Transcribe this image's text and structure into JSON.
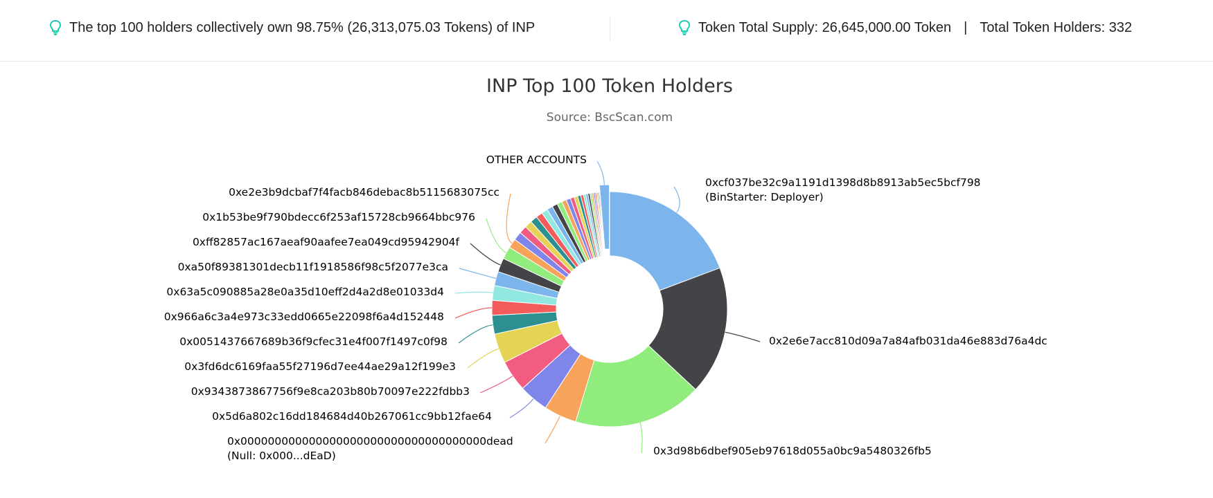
{
  "header": {
    "left_text": "The top 100 holders collectively own 98.75% (26,313,075.03 Tokens) of INP",
    "total_supply_text": "Token Total Supply: 26,645,000.00 Token",
    "separator": "|",
    "holders_text": "Total Token Holders: 332",
    "icon_color": "#00c9a7"
  },
  "chart_data": {
    "type": "pie",
    "donut": true,
    "title": "INP Top 100 Token Holders",
    "subtitle": "Source: BscScan.com",
    "unit": "percent of total supply (estimated from slice angles)",
    "slices": [
      {
        "label": "0xcf037be32c9a1191d1398d8b8913ab5ec5bcf798",
        "label2": "(BinStarter: Deployer)",
        "value": 18.0,
        "color": "#7cb5ec",
        "side": "right"
      },
      {
        "label": "0x2e6e7acc810d09a7a84afb031da46e883d76a4dc",
        "label2": "",
        "value": 16.5,
        "color": "#434348",
        "side": "right"
      },
      {
        "label": "0x3d98b6dbef905eb97618d055a0bc9a5480326fb5",
        "label2": "",
        "value": 16.5,
        "color": "#90ed7d",
        "side": "right"
      },
      {
        "label": "0x000000000000000000000000000000000000dead",
        "label2": "(Null: 0x000...dEaD)",
        "value": 4.2,
        "color": "#f7a35c",
        "side": "left"
      },
      {
        "label": "0x5d6a802c16dd184684d40b267061cc9bb12fae64",
        "label2": "",
        "value": 3.8,
        "color": "#8085e9",
        "side": "left"
      },
      {
        "label": "0x9343873867756f9e8ca203b80b70097e222fdbb3",
        "label2": "",
        "value": 4.0,
        "color": "#f15c80",
        "side": "left"
      },
      {
        "label": "0x3fd6dc6169faa55f27196d7ee44ae29a12f199e3",
        "label2": "",
        "value": 3.8,
        "color": "#e4d354",
        "side": "left"
      },
      {
        "label": "0x0051437667689b36f9cfec31e4f007f1497c0f98",
        "label2": "",
        "value": 2.4,
        "color": "#2b908f",
        "side": "left"
      },
      {
        "label": "0x966a6c3a4e973c33edd0665e22098f6a4d152448",
        "label2": "",
        "value": 1.9,
        "color": "#f45b5b",
        "side": "left"
      },
      {
        "label": "0x63a5c090885a28e0a35d10eff2d4a2d8e01033d4",
        "label2": "",
        "value": 1.9,
        "color": "#91e8e1",
        "side": "left"
      },
      {
        "label": "0xa50f89381301decb11f1918586f98c5f2077e3ca",
        "label2": "",
        "value": 1.8,
        "color": "#7cb5ec",
        "side": "left"
      },
      {
        "label": "0xff82857ac167aeaf90aafee7ea049cd95942904f",
        "label2": "",
        "value": 1.8,
        "color": "#434348",
        "side": "left"
      },
      {
        "label": "0x1b53be9f790bdecc6f253af15728cb9664bbc976",
        "label2": "",
        "value": 1.6,
        "color": "#90ed7d",
        "side": "left"
      },
      {
        "label": "0xe2e3b9dcbaf7f4facb846debac8b5115683075cc",
        "label2": "",
        "value": 1.2,
        "color": "#f7a35c",
        "side": "left"
      },
      {
        "label": "",
        "label2": "",
        "value": 1.1,
        "color": "#8085e9",
        "side": "none"
      },
      {
        "label": "",
        "label2": "",
        "value": 1.0,
        "color": "#f15c80",
        "side": "none"
      },
      {
        "label": "",
        "label2": "",
        "value": 0.95,
        "color": "#e4d354",
        "side": "none"
      },
      {
        "label": "",
        "label2": "",
        "value": 0.9,
        "color": "#2b908f",
        "side": "none"
      },
      {
        "label": "",
        "label2": "",
        "value": 0.85,
        "color": "#f45b5b",
        "side": "none"
      },
      {
        "label": "",
        "label2": "",
        "value": 0.8,
        "color": "#91e8e1",
        "side": "none"
      },
      {
        "label": "",
        "label2": "",
        "value": 0.75,
        "color": "#7cb5ec",
        "side": "none"
      },
      {
        "label": "",
        "label2": "",
        "value": 0.7,
        "color": "#434348",
        "side": "none"
      },
      {
        "label": "",
        "label2": "",
        "value": 0.65,
        "color": "#90ed7d",
        "side": "none"
      },
      {
        "label": "",
        "label2": "",
        "value": 0.6,
        "color": "#f7a35c",
        "side": "none"
      },
      {
        "label": "",
        "label2": "",
        "value": 0.55,
        "color": "#8085e9",
        "side": "none"
      },
      {
        "label": "",
        "label2": "",
        "value": 0.5,
        "color": "#f15c80",
        "side": "none"
      },
      {
        "label": "",
        "label2": "",
        "value": 0.45,
        "color": "#e4d354",
        "side": "none"
      },
      {
        "label": "",
        "label2": "",
        "value": 0.4,
        "color": "#2b908f",
        "side": "none"
      },
      {
        "label": "",
        "label2": "",
        "value": 0.35,
        "color": "#f45b5b",
        "side": "none"
      },
      {
        "label": "",
        "label2": "",
        "value": 0.3,
        "color": "#91e8e1",
        "side": "none"
      },
      {
        "label": "",
        "label2": "",
        "value": 0.28,
        "color": "#7cb5ec",
        "side": "none"
      },
      {
        "label": "",
        "label2": "",
        "value": 0.26,
        "color": "#434348",
        "side": "none"
      },
      {
        "label": "",
        "label2": "",
        "value": 0.24,
        "color": "#90ed7d",
        "side": "none"
      },
      {
        "label": "",
        "label2": "",
        "value": 0.22,
        "color": "#f7a35c",
        "side": "none"
      },
      {
        "label": "",
        "label2": "",
        "value": 0.2,
        "color": "#8085e9",
        "side": "none"
      },
      {
        "label": "",
        "label2": "",
        "value": 0.18,
        "color": "#f15c80",
        "side": "none"
      },
      {
        "label": "",
        "label2": "",
        "value": 0.16,
        "color": "#e4d354",
        "side": "none"
      },
      {
        "label": "",
        "label2": "",
        "value": 0.14,
        "color": "#2b908f",
        "side": "none"
      },
      {
        "label": "",
        "label2": "",
        "value": 0.12,
        "color": "#f45b5b",
        "side": "none"
      },
      {
        "label": "OTHER ACCOUNTS",
        "label2": "",
        "value": 1.25,
        "color": "#7cb5ec",
        "side": "top"
      }
    ]
  }
}
